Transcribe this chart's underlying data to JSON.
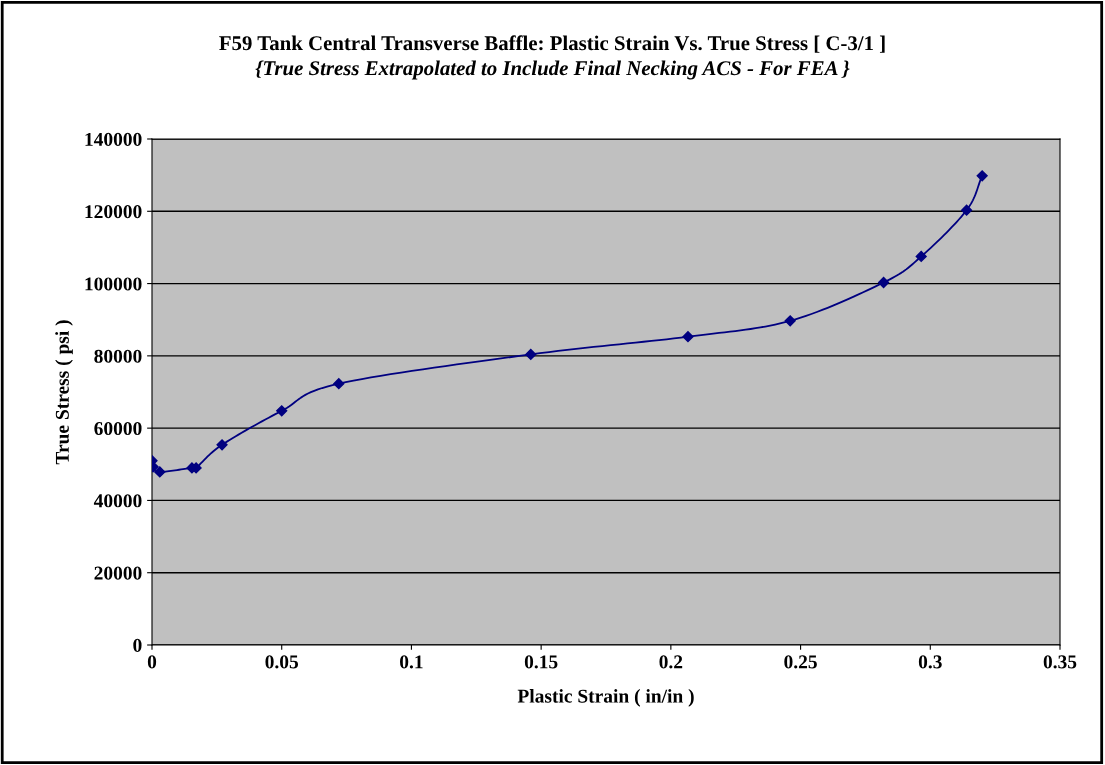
{
  "chart_data": {
    "type": "line",
    "title": "F59 Tank Central Transverse Baffle: Plastic Strain Vs. True Stress [ C-3/1 ]",
    "subtitle": "{True Stress Extrapolated to Include Final Necking ACS - For FEA }",
    "xlabel": "Plastic Strain ( in/in )",
    "ylabel": "True Stress ( psi )",
    "series": [
      {
        "color": "#000080",
        "x": [
          0,
          0.0004,
          0.003,
          0.0154,
          0.017,
          0.027,
          0.05,
          0.072,
          0.146,
          0.2066,
          0.246,
          0.282,
          0.2965,
          0.314,
          0.32
        ],
        "values": [
          51000,
          49300,
          47900,
          49000,
          49000,
          55400,
          64800,
          72300,
          80400,
          85300,
          89700,
          100300,
          107500,
          120300,
          129800
        ]
      }
    ],
    "xlim": [
      0,
      0.35
    ],
    "xticks": [
      0,
      0.05,
      0.1,
      0.15,
      0.2,
      0.25,
      0.3,
      0.35
    ],
    "ylim": [
      0,
      140000
    ],
    "yticks": [
      0,
      20000,
      40000,
      60000,
      80000,
      100000,
      120000,
      140000
    ],
    "grid": "y",
    "marker": "diamond",
    "line_style": "solid",
    "legend": false
  }
}
